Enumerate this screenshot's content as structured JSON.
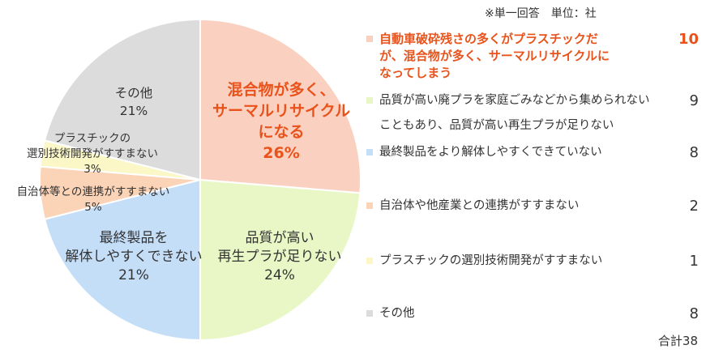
{
  "note": "※単一回答　単位：社",
  "total_label": "合計38",
  "chart_data": {
    "type": "pie",
    "title": "",
    "slices": [
      {
        "label_lines": [
          "混合物が多く、",
          "サーマルリサイクル",
          "になる"
        ],
        "percent_label": "26%",
        "percent": 26,
        "count": 10,
        "color": "#fad1c0",
        "legend_lines": [
          "自動車破砕残さの多くがプラスチックだ",
          "が、混合物が多く、サーマルリサイクルに",
          "なってしまう"
        ],
        "highlight": true
      },
      {
        "label_lines": [
          "品質が高い",
          "再生プラが足りない"
        ],
        "percent_label": "24%",
        "percent": 24,
        "count": 9,
        "color": "#e9f7c7",
        "legend_lines": [
          "品質が高い廃プラを家庭ごみなどから集められない",
          "こともあり、品質が高い再生プラが足りない"
        ],
        "highlight": false
      },
      {
        "label_lines": [
          "最終製品を",
          "解体しやすくできない"
        ],
        "percent_label": "21%",
        "percent": 21,
        "count": 8,
        "color": "#c5def8",
        "legend_lines": [
          "最終製品をより解体しやすくできていない"
        ],
        "highlight": false
      },
      {
        "label_lines": [
          "自治体等との連携がすすまない"
        ],
        "percent_label": "5%",
        "percent": 5,
        "count": 2,
        "color": "#fbd3b6",
        "legend_lines": [
          "自治体や他産業との連携がすすまない"
        ],
        "highlight": false
      },
      {
        "label_lines": [
          "プラスチックの",
          "選別技術開発がすすまない"
        ],
        "percent_label": "3%",
        "percent": 3,
        "count": 1,
        "color": "#fbf7c6",
        "legend_lines": [
          "プラスチックの選別技術開発がすすまない"
        ],
        "highlight": false
      },
      {
        "label_lines": [
          "その他"
        ],
        "percent_label": "21%",
        "percent": 21,
        "count": 8,
        "color": "#dcdcdc",
        "legend_lines": [
          "その他"
        ],
        "highlight": false
      }
    ]
  }
}
